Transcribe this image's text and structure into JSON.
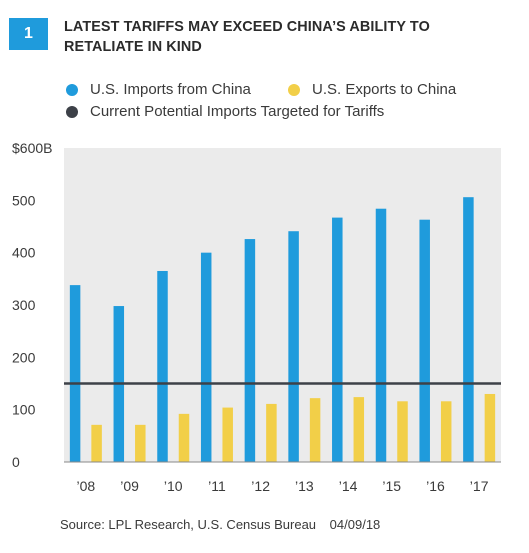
{
  "header": {
    "figure_number": "1",
    "title": "LATEST TARIFFS MAY EXCEED CHINA’S ABILITY TO RETALIATE IN KIND"
  },
  "colors": {
    "badge": "#1f9bdc",
    "imports": "#1f9bdc",
    "exports": "#f2cf48",
    "threshold": "#3d4148",
    "plot_bg": "#ebebeb"
  },
  "legend": {
    "items": [
      {
        "label": "U.S. Imports from China",
        "color": "#1f9bdc"
      },
      {
        "label": "U.S. Exports to China",
        "color": "#f2cf48"
      },
      {
        "label": "Current Potential Imports Targeted for Tariffs",
        "color": "#3d4148"
      }
    ]
  },
  "chart_data": {
    "type": "bar",
    "categories": [
      "’08",
      "’09",
      "’10",
      "’11",
      "’12",
      "’13",
      "’14",
      "’15",
      "’16",
      "’17"
    ],
    "series": [
      {
        "name": "U.S. Imports from China",
        "values": [
          338,
          298,
          365,
          400,
          426,
          441,
          467,
          484,
          463,
          506
        ]
      },
      {
        "name": "U.S. Exports to China",
        "values": [
          71,
          71,
          92,
          104,
          111,
          122,
          124,
          116,
          116,
          130
        ]
      }
    ],
    "reference_line": {
      "name": "Current Potential Imports Targeted for Tariffs",
      "value": 150
    },
    "y_ticks": [
      "$600B",
      "500",
      "400",
      "300",
      "200",
      "100",
      "0"
    ],
    "y_tick_values": [
      600,
      500,
      400,
      300,
      200,
      100,
      0
    ],
    "ylim": [
      0,
      600
    ],
    "grid": false,
    "legend_position": "top"
  },
  "footer": {
    "source": "Source: LPL Research, U.S. Census Bureau",
    "date": "04/09/18"
  }
}
